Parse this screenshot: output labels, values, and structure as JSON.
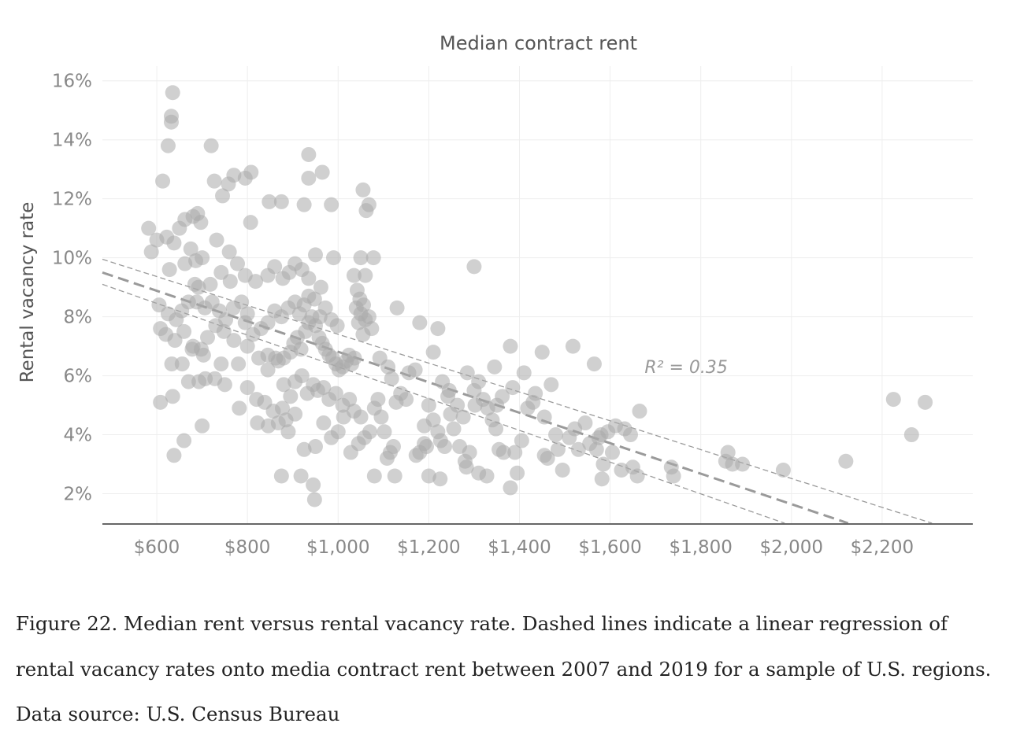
{
  "chart_data": {
    "type": "scatter",
    "title": "Median contract rent",
    "xlabel": "",
    "ylabel": "Rental vacancy rate",
    "xlim": [
      480,
      2400
    ],
    "ylim": [
      1.0,
      16.5
    ],
    "x_ticks": [
      600,
      800,
      1000,
      1200,
      1400,
      1600,
      1800,
      2000,
      2200
    ],
    "x_tick_labels": [
      "$600",
      "$800",
      "$1,000",
      "$1,200",
      "$1,400",
      "$1,600",
      "$1,800",
      "$2,000",
      "$2,200"
    ],
    "y_ticks": [
      2,
      4,
      6,
      8,
      10,
      12,
      14,
      16
    ],
    "y_tick_labels": [
      "2%",
      "4%",
      "6%",
      "8%",
      "10%",
      "12%",
      "14%",
      "16%"
    ],
    "grid": true,
    "annotation": {
      "text": "R² = 0.35",
      "x": 1690,
      "y": 6.1
    },
    "regression": {
      "fit": {
        "x": [
          480,
          2125
        ],
        "y": [
          9.5,
          1.0
        ]
      },
      "upper_band": {
        "x": [
          480,
          2310
        ],
        "y": [
          9.95,
          1.0
        ]
      },
      "lower_band": {
        "x": [
          480,
          1985
        ],
        "y": [
          9.1,
          1.0
        ]
      }
    },
    "points": [
      [
        635,
        15.6
      ],
      [
        632,
        14.8
      ],
      [
        632,
        14.6
      ],
      [
        625,
        13.8
      ],
      [
        613,
        12.6
      ],
      [
        720,
        13.8
      ],
      [
        727,
        12.6
      ],
      [
        758,
        12.5
      ],
      [
        770,
        12.8
      ],
      [
        795,
        12.7
      ],
      [
        808,
        12.9
      ],
      [
        745,
        12.1
      ],
      [
        582,
        11.0
      ],
      [
        588,
        10.2
      ],
      [
        600,
        10.6
      ],
      [
        622,
        10.7
      ],
      [
        638,
        10.5
      ],
      [
        650,
        11.0
      ],
      [
        662,
        11.3
      ],
      [
        680,
        11.4
      ],
      [
        690,
        11.5
      ],
      [
        697,
        11.2
      ],
      [
        675,
        10.3
      ],
      [
        686,
        9.9
      ],
      [
        700,
        10.0
      ],
      [
        732,
        10.6
      ],
      [
        760,
        10.2
      ],
      [
        778,
        9.8
      ],
      [
        795,
        9.4
      ],
      [
        818,
        9.2
      ],
      [
        628,
        9.6
      ],
      [
        662,
        9.8
      ],
      [
        684,
        9.1
      ],
      [
        692,
        9.0
      ],
      [
        718,
        9.1
      ],
      [
        742,
        9.5
      ],
      [
        762,
        9.2
      ],
      [
        807,
        11.2
      ],
      [
        605,
        8.4
      ],
      [
        625,
        8.1
      ],
      [
        643,
        7.9
      ],
      [
        655,
        8.2
      ],
      [
        670,
        8.5
      ],
      [
        688,
        8.5
      ],
      [
        706,
        8.3
      ],
      [
        722,
        8.5
      ],
      [
        738,
        8.2
      ],
      [
        752,
        7.9
      ],
      [
        769,
        8.3
      ],
      [
        787,
        8.5
      ],
      [
        800,
        8.1
      ],
      [
        608,
        7.6
      ],
      [
        620,
        7.4
      ],
      [
        640,
        7.2
      ],
      [
        660,
        7.5
      ],
      [
        680,
        7.0
      ],
      [
        698,
        6.9
      ],
      [
        712,
        7.3
      ],
      [
        730,
        7.7
      ],
      [
        748,
        7.5
      ],
      [
        770,
        7.2
      ],
      [
        795,
        7.8
      ],
      [
        812,
        7.4
      ],
      [
        830,
        7.6
      ],
      [
        633,
        6.4
      ],
      [
        656,
        6.4
      ],
      [
        678,
        6.9
      ],
      [
        703,
        6.7
      ],
      [
        742,
        6.4
      ],
      [
        780,
        6.4
      ],
      [
        800,
        7.0
      ],
      [
        825,
        6.6
      ],
      [
        845,
        6.7
      ],
      [
        868,
        6.5
      ],
      [
        608,
        5.1
      ],
      [
        635,
        5.3
      ],
      [
        670,
        5.8
      ],
      [
        693,
        5.8
      ],
      [
        707,
        5.9
      ],
      [
        728,
        5.9
      ],
      [
        750,
        5.7
      ],
      [
        782,
        4.9
      ],
      [
        800,
        5.6
      ],
      [
        820,
        5.2
      ],
      [
        838,
        5.1
      ],
      [
        857,
        4.8
      ],
      [
        877,
        4.9
      ],
      [
        638,
        3.3
      ],
      [
        660,
        3.8
      ],
      [
        700,
        4.3
      ],
      [
        822,
        4.4
      ],
      [
        846,
        4.3
      ],
      [
        868,
        4.4
      ],
      [
        890,
        4.1
      ],
      [
        845,
        6.2
      ],
      [
        862,
        6.6
      ],
      [
        880,
        6.6
      ],
      [
        895,
        6.8
      ],
      [
        902,
        7.1
      ],
      [
        910,
        7.3
      ],
      [
        918,
        6.9
      ],
      [
        928,
        7.5
      ],
      [
        935,
        7.8
      ],
      [
        942,
        8.0
      ],
      [
        950,
        7.7
      ],
      [
        958,
        7.3
      ],
      [
        965,
        7.1
      ],
      [
        972,
        6.9
      ],
      [
        980,
        6.7
      ],
      [
        988,
        6.6
      ],
      [
        995,
        6.4
      ],
      [
        1002,
        6.2
      ],
      [
        1010,
        6.3
      ],
      [
        1018,
        6.5
      ],
      [
        1024,
        6.7
      ],
      [
        1030,
        6.4
      ],
      [
        1036,
        6.6
      ],
      [
        845,
        7.8
      ],
      [
        860,
        8.2
      ],
      [
        875,
        8.0
      ],
      [
        890,
        8.3
      ],
      [
        905,
        8.5
      ],
      [
        915,
        8.1
      ],
      [
        925,
        8.4
      ],
      [
        935,
        8.7
      ],
      [
        948,
        8.6
      ],
      [
        960,
        8.0
      ],
      [
        972,
        8.3
      ],
      [
        985,
        7.9
      ],
      [
        998,
        7.7
      ],
      [
        845,
        9.4
      ],
      [
        860,
        9.7
      ],
      [
        878,
        9.3
      ],
      [
        892,
        9.5
      ],
      [
        905,
        9.8
      ],
      [
        920,
        9.6
      ],
      [
        935,
        9.3
      ],
      [
        950,
        10.1
      ],
      [
        962,
        9.0
      ],
      [
        990,
        10.0
      ],
      [
        1035,
        9.4
      ],
      [
        1050,
        10.0
      ],
      [
        1060,
        9.4
      ],
      [
        1078,
        10.0
      ],
      [
        848,
        11.9
      ],
      [
        875,
        11.9
      ],
      [
        925,
        11.8
      ],
      [
        935,
        12.7
      ],
      [
        935,
        13.5
      ],
      [
        965,
        12.9
      ],
      [
        985,
        11.8
      ],
      [
        1055,
        12.3
      ],
      [
        1062,
        11.6
      ],
      [
        1068,
        11.8
      ],
      [
        880,
        5.7
      ],
      [
        895,
        5.3
      ],
      [
        905,
        5.8
      ],
      [
        920,
        6.0
      ],
      [
        932,
        5.4
      ],
      [
        945,
        5.7
      ],
      [
        955,
        5.5
      ],
      [
        968,
        5.6
      ],
      [
        980,
        5.2
      ],
      [
        995,
        5.4
      ],
      [
        1010,
        5.0
      ],
      [
        1025,
        5.2
      ],
      [
        1035,
        4.8
      ],
      [
        1050,
        4.6
      ],
      [
        885,
        4.5
      ],
      [
        905,
        4.7
      ],
      [
        925,
        3.5
      ],
      [
        950,
        3.6
      ],
      [
        968,
        4.4
      ],
      [
        985,
        3.9
      ],
      [
        1000,
        4.1
      ],
      [
        1012,
        4.6
      ],
      [
        1028,
        3.4
      ],
      [
        1045,
        3.7
      ],
      [
        1058,
        3.9
      ],
      [
        1070,
        4.1
      ],
      [
        875,
        2.6
      ],
      [
        918,
        2.6
      ],
      [
        945,
        2.3
      ],
      [
        948,
        1.8
      ],
      [
        1040,
        8.3
      ],
      [
        1045,
        7.8
      ],
      [
        1050,
        8.1
      ],
      [
        1055,
        7.4
      ],
      [
        1060,
        7.9
      ],
      [
        1048,
        8.6
      ],
      [
        1042,
        8.9
      ],
      [
        1056,
        8.4
      ],
      [
        1068,
        8.0
      ],
      [
        1074,
        7.6
      ],
      [
        1080,
        4.9
      ],
      [
        1088,
        5.2
      ],
      [
        1095,
        4.6
      ],
      [
        1102,
        4.1
      ],
      [
        1108,
        3.2
      ],
      [
        1115,
        3.4
      ],
      [
        1122,
        3.6
      ],
      [
        1128,
        5.1
      ],
      [
        1080,
        2.6
      ],
      [
        1125,
        2.6
      ],
      [
        1092,
        6.6
      ],
      [
        1110,
        6.3
      ],
      [
        1118,
        5.9
      ],
      [
        1130,
        8.3
      ],
      [
        1150,
        5.2
      ],
      [
        1170,
        6.2
      ],
      [
        1180,
        7.8
      ],
      [
        1190,
        4.3
      ],
      [
        1200,
        5.0
      ],
      [
        1210,
        4.5
      ],
      [
        1220,
        4.1
      ],
      [
        1226,
        3.8
      ],
      [
        1235,
        3.6
      ],
      [
        1180,
        3.4
      ],
      [
        1195,
        3.6
      ],
      [
        1200,
        2.6
      ],
      [
        1225,
        2.5
      ],
      [
        1210,
        6.8
      ],
      [
        1220,
        7.6
      ],
      [
        1230,
        5.8
      ],
      [
        1245,
        5.5
      ],
      [
        1255,
        4.2
      ],
      [
        1268,
        3.6
      ],
      [
        1280,
        3.1
      ],
      [
        1290,
        3.4
      ],
      [
        1285,
        6.1
      ],
      [
        1300,
        9.7
      ],
      [
        1300,
        5.5
      ],
      [
        1310,
        5.8
      ],
      [
        1320,
        5.2
      ],
      [
        1330,
        4.9
      ],
      [
        1340,
        4.5
      ],
      [
        1345,
        6.3
      ],
      [
        1350,
        5.0
      ],
      [
        1355,
        3.5
      ],
      [
        1365,
        3.4
      ],
      [
        1310,
        2.7
      ],
      [
        1328,
        2.6
      ],
      [
        1380,
        7.0
      ],
      [
        1385,
        5.6
      ],
      [
        1390,
        3.4
      ],
      [
        1395,
        2.7
      ],
      [
        1380,
        2.2
      ],
      [
        1405,
        3.8
      ],
      [
        1410,
        6.1
      ],
      [
        1430,
        5.1
      ],
      [
        1435,
        5.4
      ],
      [
        1450,
        6.8
      ],
      [
        1455,
        3.3
      ],
      [
        1462,
        3.2
      ],
      [
        1470,
        5.7
      ],
      [
        1480,
        4.0
      ],
      [
        1485,
        3.5
      ],
      [
        1495,
        2.8
      ],
      [
        1510,
        3.9
      ],
      [
        1518,
        7.0
      ],
      [
        1530,
        3.5
      ],
      [
        1545,
        4.4
      ],
      [
        1555,
        3.7
      ],
      [
        1565,
        6.4
      ],
      [
        1570,
        3.5
      ],
      [
        1580,
        4.0
      ],
      [
        1585,
        3.0
      ],
      [
        1582,
        2.5
      ],
      [
        1595,
        4.1
      ],
      [
        1605,
        3.4
      ],
      [
        1612,
        4.3
      ],
      [
        1625,
        2.8
      ],
      [
        1632,
        4.2
      ],
      [
        1645,
        4.0
      ],
      [
        1650,
        2.9
      ],
      [
        1660,
        2.6
      ],
      [
        1665,
        4.8
      ],
      [
        1735,
        2.9
      ],
      [
        1740,
        2.6
      ],
      [
        1855,
        3.1
      ],
      [
        1860,
        3.4
      ],
      [
        1870,
        3.0
      ],
      [
        1892,
        3.0
      ],
      [
        1982,
        2.8
      ],
      [
        2120,
        3.1
      ],
      [
        2225,
        5.2
      ],
      [
        2265,
        4.0
      ],
      [
        2295,
        5.1
      ],
      [
        1138,
        5.4
      ],
      [
        1156,
        6.1
      ],
      [
        1242,
        5.3
      ],
      [
        1263,
        5.0
      ],
      [
        1276,
        4.6
      ],
      [
        1302,
        5.0
      ],
      [
        1348,
        4.2
      ],
      [
        1362,
        5.3
      ],
      [
        1418,
        4.9
      ],
      [
        1455,
        4.6
      ],
      [
        1522,
        4.2
      ],
      [
        1575,
        3.9
      ],
      [
        1248,
        4.7
      ],
      [
        1190,
        3.7
      ],
      [
        1172,
        3.3
      ],
      [
        1283,
        2.9
      ]
    ]
  },
  "caption": "Figure 22.  Median rent versus rental vacancy rate. Dashed lines indicate a linear regression of rental vacancy rates onto media contract rent between 2007 and 2019 for a sample of U.S. regions. Data source: U.S. Census Bureau"
}
